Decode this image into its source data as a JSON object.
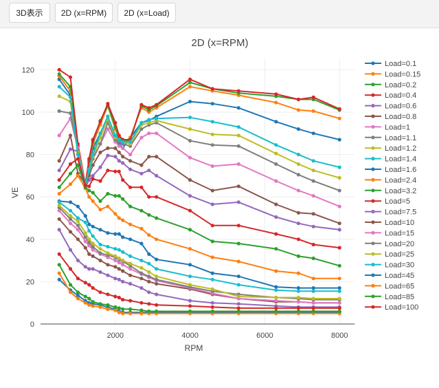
{
  "toolbar": {
    "buttons": [
      "3D表示",
      "2D (x=RPM)",
      "2D (x=Load)"
    ]
  },
  "chart_data": {
    "type": "line",
    "title": "2D (x=RPM)",
    "xlabel": "RPM",
    "ylabel": "VE",
    "xlim": [
      0,
      8400
    ],
    "ylim": [
      0,
      125
    ],
    "xticks": [
      2000,
      4000,
      6000,
      8000
    ],
    "yticks": [
      0,
      20,
      40,
      60,
      80,
      100,
      120
    ],
    "grid": true,
    "legend_position": "right",
    "x": [
      500,
      800,
      1000,
      1200,
      1300,
      1400,
      1600,
      1800,
      2000,
      2100,
      2200,
      2400,
      2700,
      2900,
      3100,
      4000,
      4600,
      5300,
      6300,
      6900,
      7300,
      8000
    ],
    "series": [
      {
        "name": "Load=0.1",
        "color": "#1f77b4",
        "values": [
          115.5,
          108,
          80,
          65,
          74,
          83,
          90,
          98,
          87,
          85,
          83,
          88,
          95,
          96,
          98,
          105,
          104,
          102,
          95.5,
          92,
          90,
          87
        ]
      },
      {
        "name": "Load=0.15",
        "color": "#ff7f0e",
        "values": [
          117,
          110,
          83,
          66,
          76,
          85,
          94,
          103,
          92,
          87,
          85,
          88,
          102,
          100,
          102,
          112,
          110,
          108,
          104.5,
          101,
          100.5,
          97
        ]
      },
      {
        "name": "Load=0.2",
        "color": "#2ca02c",
        "values": [
          118,
          112,
          84,
          66,
          77,
          86,
          96,
          103,
          93,
          88,
          86,
          87,
          103,
          101,
          103,
          114,
          111,
          109,
          107.5,
          106,
          106,
          101
        ]
      },
      {
        "name": "Load=0.4",
        "color": "#d62728",
        "values": [
          120,
          116.5,
          85,
          66,
          78,
          87,
          95.5,
          104,
          95,
          89,
          87,
          87,
          103.5,
          102,
          103.5,
          115.5,
          111,
          110,
          108.5,
          106,
          107,
          101.5
        ]
      },
      {
        "name": "Load=0.6",
        "color": "#9467bd",
        "values": [
          72.5,
          82.5,
          81.5,
          64.5,
          68,
          70,
          74,
          79.5,
          79,
          77,
          76,
          73,
          71,
          72.5,
          70,
          60.5,
          56.5,
          57.5,
          50.5,
          47.5,
          46,
          44.5
        ]
      },
      {
        "name": "Load=0.8",
        "color": "#8c564b",
        "values": [
          77,
          89,
          71,
          66,
          70,
          75,
          81,
          83,
          83,
          81,
          79,
          77,
          75,
          79,
          79,
          68,
          63,
          65,
          56.5,
          52.5,
          52,
          47.5
        ]
      },
      {
        "name": "Load=1",
        "color": "#e377c2",
        "values": [
          89,
          97,
          83,
          66,
          73,
          78,
          85,
          92,
          86,
          84,
          83,
          80,
          88,
          90,
          90,
          78.5,
          74.5,
          75.5,
          67.5,
          63,
          60.5,
          55.5
        ]
      },
      {
        "name": "Load=1.1",
        "color": "#7f7f7f",
        "values": [
          100.5,
          99.5,
          82,
          66,
          72,
          78,
          85,
          95,
          87,
          86,
          85,
          84,
          92,
          94,
          95,
          86.5,
          84.5,
          84,
          75.5,
          70.5,
          67.5,
          63
        ]
      },
      {
        "name": "Load=1.2",
        "color": "#bcbd22",
        "values": [
          107.5,
          105,
          81,
          66,
          73,
          79,
          88,
          97,
          88,
          87,
          86,
          85,
          94,
          95,
          96,
          92,
          89.5,
          89,
          80.5,
          75.5,
          72.5,
          69
        ]
      },
      {
        "name": "Load=1.4",
        "color": "#17becf",
        "values": [
          112,
          107,
          80,
          66,
          73,
          80,
          90,
          98,
          89,
          87,
          86,
          86,
          95,
          96.5,
          97,
          97.5,
          95.5,
          93,
          84.5,
          80,
          77,
          74
        ]
      },
      {
        "name": "Load=1.6",
        "color": "#1f77b4",
        "values": [
          58,
          57.5,
          55.5,
          51,
          47,
          46,
          44.5,
          43,
          42.5,
          42.5,
          41,
          40,
          38,
          33,
          30.5,
          28,
          24,
          22.5,
          17.5,
          17,
          17,
          17
        ]
      },
      {
        "name": "Load=2.4",
        "color": "#ff7f0e",
        "values": [
          61.5,
          66,
          70,
          64,
          60,
          58,
          54,
          55.5,
          52,
          50,
          49,
          47,
          45,
          42,
          40,
          35.5,
          31.5,
          29.5,
          25,
          24,
          21.5,
          21.5
        ]
      },
      {
        "name": "Load=3.2",
        "color": "#2ca02c",
        "values": [
          64.5,
          71,
          75,
          64.5,
          63,
          62,
          58,
          61.5,
          60.5,
          60.5,
          59,
          55.5,
          53.5,
          51.5,
          50,
          44.5,
          39,
          38,
          35.5,
          32,
          31,
          27.5
        ]
      },
      {
        "name": "Load=5",
        "color": "#d62728",
        "values": [
          68,
          75.5,
          78,
          65.5,
          65,
          68.5,
          67.5,
          72.5,
          72,
          72,
          68,
          64.5,
          64.5,
          60,
          60,
          53.5,
          46.5,
          46.5,
          42.5,
          40,
          37.5,
          36
        ]
      },
      {
        "name": "Load=7.5",
        "color": "#9467bd",
        "values": [
          44.5,
          35,
          30,
          27,
          26,
          26,
          24.5,
          23,
          21.5,
          21,
          20,
          19,
          17,
          15,
          14,
          11,
          10,
          9.5,
          8.5,
          8,
          8,
          8
        ]
      },
      {
        "name": "Load=10",
        "color": "#8c564b",
        "values": [
          49.5,
          43.5,
          40,
          36,
          33,
          32,
          30,
          28,
          27,
          26,
          25,
          23,
          21.5,
          20,
          19,
          16.5,
          14,
          12,
          10.5,
          10.5,
          10,
          10
        ]
      },
      {
        "name": "Load=15",
        "color": "#e377c2",
        "values": [
          53.5,
          47.5,
          44.5,
          39,
          37,
          35,
          33,
          31.5,
          30,
          29,
          28,
          26,
          23.5,
          22,
          20.5,
          17,
          14.5,
          12,
          11,
          10.5,
          10,
          10
        ]
      },
      {
        "name": "Load=20",
        "color": "#7f7f7f",
        "values": [
          55,
          49.5,
          46.5,
          41,
          38.5,
          36.5,
          33.5,
          32.5,
          31.5,
          30.5,
          29.5,
          27.5,
          24,
          22.5,
          21,
          17.5,
          15.5,
          14,
          12.5,
          12,
          11.5,
          11.5
        ]
      },
      {
        "name": "Load=25",
        "color": "#bcbd22",
        "values": [
          56,
          51,
          48.5,
          43,
          40,
          38,
          35.5,
          33.5,
          32,
          31,
          30,
          28.5,
          26.5,
          24.5,
          22.5,
          18.5,
          16.5,
          13,
          12.5,
          12.5,
          12,
          12
        ]
      },
      {
        "name": "Load=30",
        "color": "#17becf",
        "values": [
          57.5,
          53.5,
          50,
          48,
          44,
          41.5,
          37.5,
          36.5,
          35.5,
          35,
          34,
          32,
          30,
          28.5,
          26,
          22.5,
          21,
          18.5,
          16,
          15.5,
          15.5,
          15.5
        ]
      },
      {
        "name": "Load=45",
        "color": "#1f77b4",
        "values": [
          21,
          16,
          13.5,
          11,
          10,
          9.5,
          9,
          8,
          7,
          6,
          5.5,
          5.5,
          5.5,
          5.5,
          5.5,
          5.5,
          5.5,
          5.5,
          5.5,
          5.5,
          5.5,
          5.5
        ]
      },
      {
        "name": "Load=65",
        "color": "#ff7f0e",
        "values": [
          24,
          15,
          12,
          10,
          9,
          8.5,
          8,
          7,
          6.5,
          5.5,
          5,
          5,
          5,
          5,
          5,
          5,
          5,
          5,
          5,
          5,
          5,
          5
        ]
      },
      {
        "name": "Load=85",
        "color": "#2ca02c",
        "values": [
          28,
          18.5,
          15,
          13,
          12,
          10.5,
          9.5,
          9,
          8,
          7.5,
          7,
          7,
          6.5,
          6,
          6,
          6,
          6,
          6,
          6,
          6,
          6,
          6
        ]
      },
      {
        "name": "Load=100",
        "color": "#d62728",
        "values": [
          33,
          26,
          21.5,
          19.5,
          18.5,
          17,
          15,
          14,
          13,
          12.5,
          11.5,
          11,
          10,
          9.5,
          9,
          8.5,
          8,
          7.5,
          7.5,
          7.5,
          7.5,
          7.5
        ]
      }
    ]
  }
}
